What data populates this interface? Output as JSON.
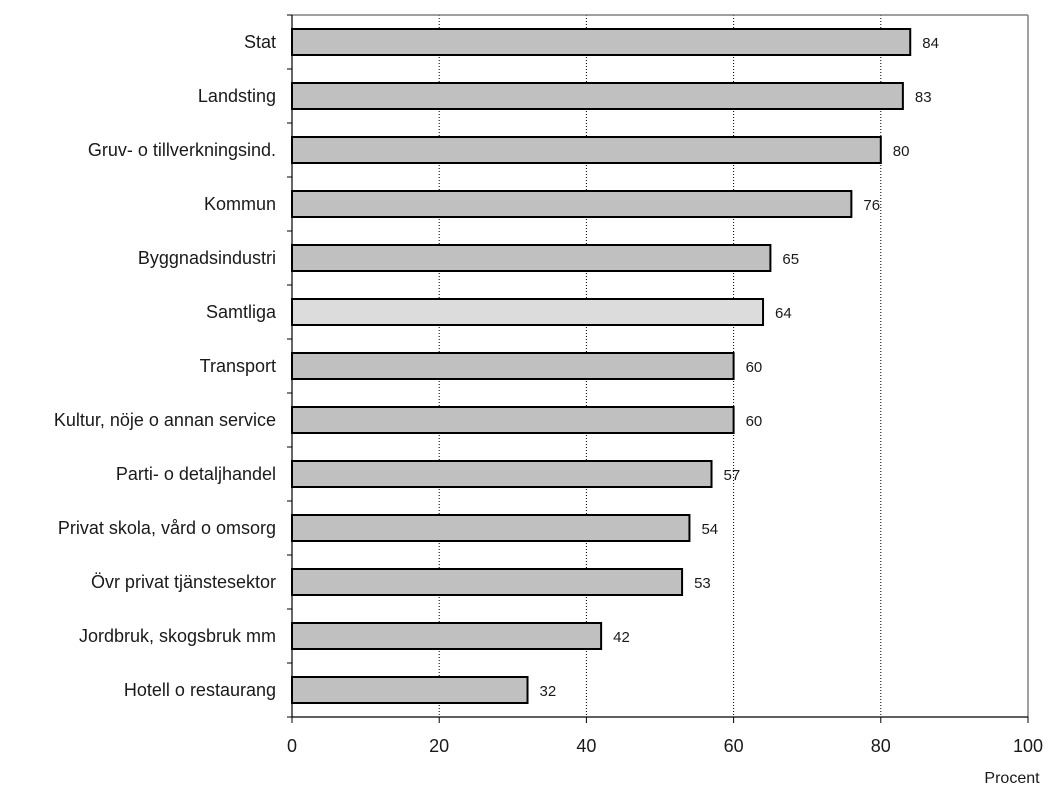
{
  "chart_data": {
    "type": "bar",
    "orientation": "horizontal",
    "categories": [
      "Stat",
      "Landsting",
      "Gruv- o tillverkningsind.",
      "Kommun",
      "Byggnadsindustri",
      "Samtliga",
      "Transport",
      "Kultur, nöje o annan service",
      "Parti- o detaljhandel",
      "Privat skola, vård o omsorg",
      "Övr privat tjänstesektor",
      "Jordbruk, skogsbruk mm",
      "Hotell o restaurang"
    ],
    "values": [
      84,
      83,
      80,
      76,
      65,
      64,
      60,
      60,
      57,
      54,
      53,
      42,
      32
    ],
    "data_labels": [
      "84",
      "83",
      "80",
      "76",
      "65",
      "64",
      "60",
      "60",
      "57",
      "54",
      "53",
      "42",
      "32"
    ],
    "highlight_category": "Samtliga",
    "xlim": [
      0,
      100
    ],
    "xticks": [
      "0",
      "20",
      "40",
      "60",
      "80",
      "100"
    ],
    "xlabel": "Procent",
    "grid": "vertical dotted",
    "colors": {
      "bar": "#c0c0c0",
      "bar_highlight": "#dcdcdc",
      "bar_outline": "#000000",
      "gridline": "#000000",
      "frame": "#808080"
    }
  }
}
